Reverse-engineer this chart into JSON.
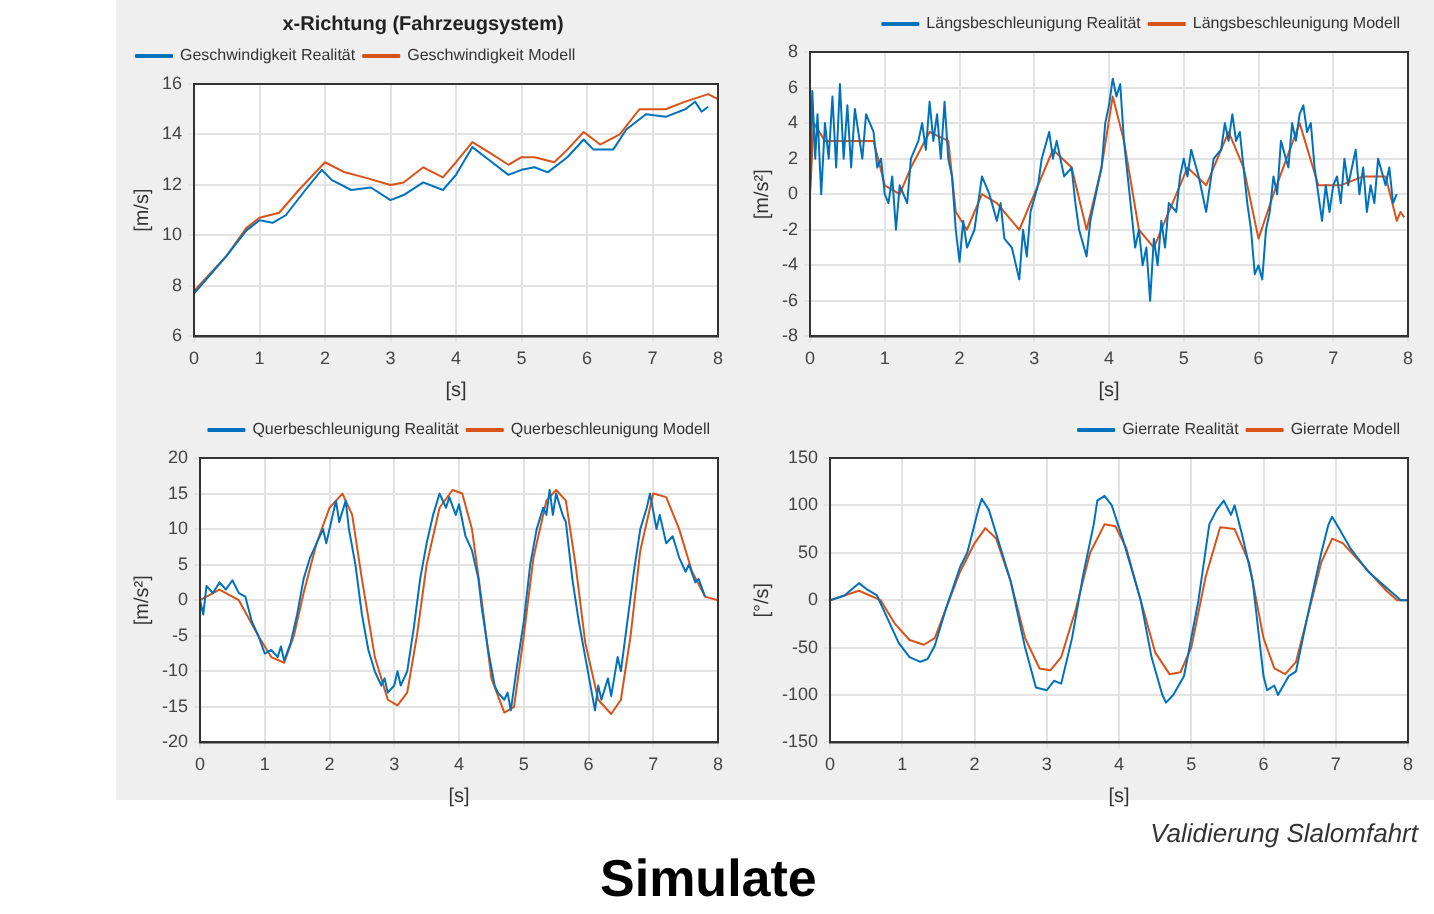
{
  "chart_data": [
    {
      "type": "line",
      "title": "x-Richtung (Fahrzeugsystem)",
      "xlabel": "[s]",
      "ylabel": "[m/s]",
      "xlim": [
        0,
        8
      ],
      "xticks": [
        0,
        1,
        2,
        3,
        4,
        5,
        6,
        7,
        8
      ],
      "ylim": [
        6,
        16
      ],
      "yticks": [
        6,
        8,
        10,
        12,
        14,
        16
      ],
      "grid": true,
      "legend": "top left",
      "series": [
        {
          "name": "Geschwindigkeit Realität",
          "color": "#0072bd",
          "x": [
            0,
            0.5,
            0.8,
            1,
            1.2,
            1.4,
            1.7,
            1.95,
            2.1,
            2.4,
            2.7,
            3,
            3.2,
            3.5,
            3.8,
            4,
            4.25,
            4.5,
            4.8,
            5,
            5.2,
            5.4,
            5.7,
            5.95,
            6.1,
            6.4,
            6.6,
            6.9,
            7.2,
            7.5,
            7.65,
            7.75,
            7.85
          ],
          "values": [
            7.7,
            9.2,
            10.2,
            10.6,
            10.5,
            10.8,
            11.8,
            12.6,
            12.2,
            11.8,
            11.9,
            11.4,
            11.6,
            12.1,
            11.8,
            12.4,
            13.5,
            13,
            12.4,
            12.6,
            12.7,
            12.5,
            13.1,
            13.8,
            13.4,
            13.4,
            14.2,
            14.8,
            14.7,
            15,
            15.3,
            14.9,
            15.1
          ]
        },
        {
          "name": "Geschwindigkeit Modell",
          "color": "#d95319",
          "x": [
            0,
            0.5,
            0.8,
            1,
            1.3,
            1.6,
            2,
            2.3,
            2.6,
            3,
            3.2,
            3.5,
            3.8,
            4,
            4.25,
            4.5,
            4.8,
            5,
            5.2,
            5.5,
            5.7,
            5.95,
            6.2,
            6.5,
            6.8,
            7.2,
            7.5,
            7.85,
            8
          ],
          "values": [
            7.8,
            9.2,
            10.3,
            10.7,
            10.9,
            11.8,
            12.9,
            12.5,
            12.3,
            12,
            12.1,
            12.7,
            12.3,
            12.9,
            13.7,
            13.3,
            12.8,
            13.1,
            13.1,
            12.9,
            13.4,
            14.1,
            13.6,
            14,
            15,
            15,
            15.3,
            15.6,
            15.4
          ]
        }
      ]
    },
    {
      "type": "line",
      "xlabel": "[s]",
      "ylabel": "[m/s²]",
      "xlim": [
        0,
        8
      ],
      "xticks": [
        0,
        1,
        2,
        3,
        4,
        5,
        6,
        7,
        8
      ],
      "ylim": [
        -8,
        8
      ],
      "yticks": [
        -8,
        -6,
        -4,
        -2,
        0,
        2,
        4,
        6,
        8
      ],
      "grid": true,
      "legend": "top right",
      "series": [
        {
          "name": "Längsbeschleunigung Realität",
          "color": "#0072bd",
          "x": [
            0,
            0.03,
            0.07,
            0.1,
            0.15,
            0.2,
            0.25,
            0.3,
            0.35,
            0.4,
            0.45,
            0.5,
            0.55,
            0.6,
            0.7,
            0.75,
            0.85,
            0.9,
            0.95,
            1,
            1.05,
            1.1,
            1.15,
            1.2,
            1.3,
            1.35,
            1.45,
            1.5,
            1.55,
            1.6,
            1.65,
            1.7,
            1.75,
            1.8,
            1.85,
            1.9,
            1.95,
            2,
            2.05,
            2.1,
            2.2,
            2.3,
            2.4,
            2.5,
            2.55,
            2.6,
            2.7,
            2.8,
            2.85,
            2.9,
            2.95,
            3.05,
            3.1,
            3.2,
            3.25,
            3.3,
            3.4,
            3.5,
            3.55,
            3.6,
            3.7,
            3.75,
            3.8,
            3.9,
            3.95,
            4,
            4.05,
            4.1,
            4.15,
            4.2,
            4.25,
            4.3,
            4.35,
            4.4,
            4.45,
            4.5,
            4.55,
            4.6,
            4.65,
            4.7,
            4.75,
            4.8,
            4.9,
            4.95,
            5,
            5.05,
            5.1,
            5.2,
            5.3,
            5.35,
            5.4,
            5.5,
            5.55,
            5.6,
            5.65,
            5.7,
            5.75,
            5.8,
            5.85,
            5.9,
            5.95,
            6,
            6.05,
            6.1,
            6.15,
            6.2,
            6.25,
            6.3,
            6.4,
            6.45,
            6.5,
            6.55,
            6.6,
            6.65,
            6.7,
            6.75,
            6.8,
            6.85,
            6.9,
            6.95,
            7,
            7.05,
            7.1,
            7.15,
            7.2,
            7.3,
            7.35,
            7.4,
            7.45,
            7.5,
            7.55,
            7.6,
            7.7,
            7.75,
            7.8,
            7.85
          ],
          "values": [
            0,
            5.8,
            2,
            4.5,
            0,
            4,
            2,
            5.5,
            1.5,
            6.2,
            2,
            5,
            1.5,
            4.8,
            2,
            4.5,
            3.5,
            1.5,
            2,
            0,
            -0.5,
            1,
            -2,
            0.5,
            -0.5,
            2,
            3,
            4,
            2.5,
            5.2,
            3,
            4.5,
            2,
            5.2,
            2,
            1,
            -2,
            -3.8,
            -1.5,
            -3,
            -2,
            1,
            0,
            -1.5,
            -0.5,
            -2.5,
            -3,
            -4.8,
            -2,
            -3.5,
            -1,
            0.5,
            2,
            3.5,
            2,
            3,
            1,
            1.5,
            -0.5,
            -2,
            -3.5,
            -1.5,
            -0.5,
            1.5,
            4,
            5,
            6.5,
            5.5,
            6.2,
            3,
            1,
            -1,
            -3,
            -2,
            -4,
            -3,
            -6,
            -2.5,
            -4,
            -1.5,
            -3,
            -0.5,
            -1,
            1,
            2,
            1,
            2.5,
            1,
            -1,
            0.5,
            2,
            2.5,
            4,
            3,
            4.5,
            3,
            3.5,
            1.5,
            -0.5,
            -2,
            -4.5,
            -4,
            -4.8,
            -2,
            -1,
            1,
            0,
            3,
            1.5,
            4,
            3,
            4.5,
            5,
            3.5,
            4,
            1.5,
            0,
            -1.5,
            0.5,
            -1,
            0.5,
            1,
            -0.5,
            2,
            0.5,
            2.5,
            0,
            1.5,
            -1,
            0.5,
            -0.5,
            2,
            0.5,
            1.5,
            -0.5,
            0
          ]
        },
        {
          "name": "Längsbeschleunigung Modell",
          "color": "#d95319",
          "x": [
            0,
            0.05,
            0.2,
            0.5,
            0.85,
            1,
            1.2,
            1.35,
            1.6,
            1.85,
            1.95,
            2.1,
            2.3,
            2.5,
            2.8,
            3,
            3.25,
            3.5,
            3.7,
            3.9,
            4.05,
            4.2,
            4.4,
            4.6,
            4.8,
            5.05,
            5.3,
            5.6,
            5.8,
            6,
            6.2,
            6.55,
            6.8,
            7.1,
            7.4,
            7.7,
            7.85,
            7.9,
            7.95
          ],
          "values": [
            0,
            4,
            3,
            3,
            3,
            0.5,
            0,
            1.5,
            3.5,
            3,
            -1,
            -2,
            0,
            -0.5,
            -2,
            0,
            2.5,
            1.5,
            -2,
            1.5,
            5.5,
            3,
            -2,
            -3,
            -1,
            1.5,
            0.5,
            3.5,
            1.5,
            -2.5,
            0,
            4,
            0.5,
            0.5,
            1,
            1,
            -1.5,
            -1,
            -1.3
          ]
        }
      ]
    },
    {
      "type": "line",
      "xlabel": "[s]",
      "ylabel": "[m/s²]",
      "xlim": [
        0,
        8
      ],
      "xticks": [
        0,
        1,
        2,
        3,
        4,
        5,
        6,
        7,
        8
      ],
      "ylim": [
        -20,
        20
      ],
      "yticks": [
        -20,
        -15,
        -10,
        -5,
        0,
        5,
        10,
        15,
        20
      ],
      "grid": true,
      "legend": "top right",
      "series": [
        {
          "name": "Querbeschleunigung Realität",
          "color": "#0072bd",
          "x": [
            0,
            0.05,
            0.1,
            0.2,
            0.3,
            0.4,
            0.5,
            0.6,
            0.7,
            0.8,
            0.9,
            1,
            1.1,
            1.2,
            1.25,
            1.3,
            1.4,
            1.5,
            1.6,
            1.7,
            1.8,
            1.9,
            1.95,
            2.05,
            2.1,
            2.15,
            2.25,
            2.3,
            2.4,
            2.5,
            2.6,
            2.7,
            2.8,
            2.85,
            2.9,
            3,
            3.05,
            3.1,
            3.2,
            3.3,
            3.4,
            3.5,
            3.6,
            3.7,
            3.8,
            3.85,
            3.95,
            4,
            4.1,
            4.2,
            4.3,
            4.35,
            4.45,
            4.55,
            4.6,
            4.7,
            4.75,
            4.8,
            4.9,
            5,
            5.1,
            5.2,
            5.3,
            5.35,
            5.4,
            5.45,
            5.5,
            5.6,
            5.65,
            5.75,
            5.85,
            5.95,
            6.05,
            6.1,
            6.15,
            6.2,
            6.3,
            6.35,
            6.45,
            6.5,
            6.6,
            6.7,
            6.8,
            6.9,
            6.95,
            7.05,
            7.1,
            7.2,
            7.3,
            7.4,
            7.5,
            7.55,
            7.65,
            7.7,
            7.8
          ],
          "values": [
            0,
            -2,
            2,
            1,
            2.5,
            1.5,
            2.8,
            1,
            0.5,
            -3,
            -5,
            -7.5,
            -7,
            -8,
            -6.5,
            -8.5,
            -6,
            -2,
            3,
            6,
            8,
            10,
            8,
            12,
            14,
            11,
            14,
            10,
            5,
            -2,
            -7,
            -10,
            -12,
            -11,
            -13,
            -12,
            -10,
            -12,
            -10,
            -4,
            3,
            8,
            12,
            15,
            13,
            14.5,
            12,
            13.5,
            9,
            7,
            3,
            -1,
            -7,
            -12,
            -13,
            -14,
            -13,
            -15.5,
            -9,
            -3,
            5,
            10,
            13,
            12,
            15.5,
            12,
            15,
            12,
            11,
            3,
            -3,
            -8,
            -13,
            -15.5,
            -12,
            -14,
            -11,
            -13.5,
            -8,
            -10,
            -3,
            4,
            10,
            13,
            15,
            10,
            12,
            8,
            9,
            6,
            4,
            5,
            2.5,
            3,
            0.5
          ]
        },
        {
          "name": "Querbeschleunigung Modell",
          "color": "#d95319",
          "x": [
            0,
            0.3,
            0.6,
            0.9,
            1.1,
            1.3,
            1.45,
            1.6,
            1.8,
            2,
            2.2,
            2.35,
            2.5,
            2.7,
            2.9,
            3.05,
            3.2,
            3.35,
            3.5,
            3.7,
            3.9,
            4.05,
            4.2,
            4.35,
            4.5,
            4.7,
            4.85,
            5,
            5.15,
            5.35,
            5.5,
            5.65,
            5.8,
            5.95,
            6.15,
            6.35,
            6.5,
            6.65,
            6.8,
            7,
            7.2,
            7.4,
            7.6,
            7.8,
            8
          ],
          "values": [
            0,
            1.5,
            0,
            -5,
            -8,
            -8.8,
            -5,
            1,
            8,
            13,
            15,
            12,
            3,
            -8,
            -14,
            -14.8,
            -13,
            -5,
            5,
            13,
            15.5,
            15,
            10,
            0,
            -11,
            -15.8,
            -15,
            -5,
            6,
            14,
            15.5,
            14,
            5,
            -6,
            -14,
            -16,
            -14,
            -5,
            7,
            15,
            14.5,
            10,
            4,
            0.5,
            0
          ]
        }
      ]
    },
    {
      "type": "line",
      "xlabel": "[s]",
      "ylabel": "[°/s]",
      "xlim": [
        0,
        8
      ],
      "xticks": [
        0,
        1,
        2,
        3,
        4,
        5,
        6,
        7,
        8
      ],
      "ylim": [
        -150,
        150
      ],
      "yticks": [
        -150,
        -100,
        -50,
        0,
        50,
        100,
        150
      ],
      "grid": true,
      "legend": "top right",
      "annotations": [
        "Validierung Slalomfahrt",
        "Simulate"
      ],
      "series": [
        {
          "name": "Gierrate Realität",
          "color": "#0072bd",
          "x": [
            0,
            0.2,
            0.4,
            0.5,
            0.65,
            0.8,
            0.95,
            1.1,
            1.25,
            1.35,
            1.45,
            1.6,
            1.8,
            1.9,
            2.05,
            2.1,
            2.2,
            2.3,
            2.5,
            2.7,
            2.85,
            3,
            3.1,
            3.2,
            3.35,
            3.5,
            3.65,
            3.7,
            3.8,
            3.9,
            4.05,
            4.3,
            4.45,
            4.6,
            4.65,
            4.75,
            4.9,
            5.1,
            5.25,
            5.35,
            5.45,
            5.55,
            5.6,
            5.7,
            5.85,
            6,
            6.05,
            6.15,
            6.2,
            6.35,
            6.45,
            6.6,
            6.8,
            6.9,
            6.95,
            7.05,
            7.2,
            7.45,
            7.6,
            7.75,
            7.9,
            8
          ],
          "values": [
            0,
            5,
            18,
            12,
            5,
            -20,
            -45,
            -60,
            -65,
            -62,
            -48,
            -10,
            35,
            50,
            95,
            107,
            95,
            70,
            20,
            -50,
            -92,
            -95,
            -85,
            -88,
            -40,
            25,
            80,
            105,
            110,
            100,
            65,
            0,
            -60,
            -100,
            -108,
            -100,
            -80,
            0,
            80,
            95,
            105,
            90,
            100,
            70,
            20,
            -80,
            -95,
            -90,
            -100,
            -80,
            -75,
            -20,
            50,
            80,
            88,
            75,
            55,
            30,
            20,
            10,
            0,
            0
          ]
        },
        {
          "name": "Gierrate Modell",
          "color": "#d95319",
          "x": [
            0,
            0.4,
            0.7,
            0.9,
            1.1,
            1.3,
            1.45,
            1.6,
            1.8,
            2,
            2.15,
            2.3,
            2.5,
            2.7,
            2.9,
            3.05,
            3.2,
            3.4,
            3.6,
            3.8,
            3.95,
            4.1,
            4.3,
            4.5,
            4.7,
            4.85,
            5,
            5.2,
            5.4,
            5.6,
            5.8,
            6,
            6.15,
            6.3,
            6.45,
            6.6,
            6.8,
            6.95,
            7.1,
            7.4,
            7.7,
            7.85,
            8
          ],
          "values": [
            0,
            10,
            0,
            -25,
            -42,
            -47,
            -40,
            -10,
            30,
            60,
            76,
            65,
            20,
            -40,
            -72,
            -74,
            -60,
            -10,
            50,
            80,
            78,
            55,
            0,
            -55,
            -78,
            -76,
            -50,
            25,
            77,
            75,
            40,
            -40,
            -72,
            -78,
            -65,
            -20,
            40,
            65,
            60,
            35,
            10,
            0,
            0
          ]
        }
      ]
    }
  ]
}
